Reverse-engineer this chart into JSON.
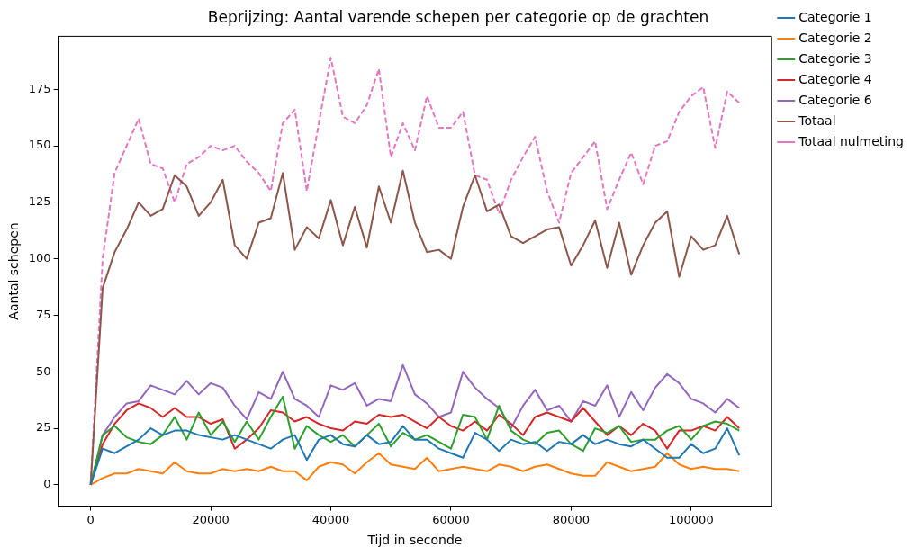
{
  "chart_data": {
    "type": "line",
    "title": "Beprijzing: Aantal varende schepen per categorie op de grachten",
    "xlabel": "Tijd in seconde",
    "ylabel": "Aantal schepen",
    "x": [
      0,
      2000,
      4000,
      6000,
      8000,
      10000,
      12000,
      14000,
      16000,
      18000,
      20000,
      22000,
      24000,
      26000,
      28000,
      30000,
      32000,
      34000,
      36000,
      38000,
      40000,
      42000,
      44000,
      46000,
      48000,
      50000,
      52000,
      54000,
      56000,
      58000,
      60000,
      62000,
      64000,
      66000,
      68000,
      70000,
      72000,
      74000,
      76000,
      78000,
      80000,
      82000,
      84000,
      86000,
      88000,
      90000,
      92000,
      94000,
      96000,
      98000,
      100000,
      102000,
      104000,
      106000,
      108000
    ],
    "series": [
      {
        "name": "Categorie 1",
        "color": "#1f77b4",
        "values": [
          0,
          16,
          14,
          17,
          20,
          25,
          22,
          24,
          24,
          22,
          21,
          20,
          22,
          20,
          18,
          16,
          20,
          22,
          11,
          20,
          22,
          18,
          17,
          22,
          18,
          19,
          26,
          20,
          20,
          16,
          14,
          12,
          23,
          20,
          15,
          20,
          18,
          19,
          15,
          19,
          18,
          22,
          18,
          20,
          18,
          17,
          20,
          16,
          12,
          12,
          18,
          14,
          16,
          25,
          13
        ]
      },
      {
        "name": "Categorie 2",
        "color": "#ff7f0e",
        "values": [
          0,
          3,
          5,
          5,
          7,
          6,
          5,
          10,
          6,
          5,
          5,
          7,
          6,
          7,
          6,
          8,
          6,
          6,
          2,
          8,
          10,
          9,
          5,
          10,
          14,
          9,
          8,
          7,
          12,
          6,
          7,
          8,
          7,
          6,
          9,
          8,
          6,
          8,
          9,
          7,
          5,
          4,
          4,
          10,
          8,
          6,
          7,
          8,
          14,
          9,
          7,
          8,
          7,
          7,
          6
        ]
      },
      {
        "name": "Categorie 3",
        "color": "#2ca02c",
        "values": [
          0,
          22,
          26,
          21,
          19,
          18,
          22,
          30,
          20,
          32,
          22,
          28,
          19,
          28,
          20,
          30,
          39,
          16,
          26,
          22,
          19,
          22,
          17,
          22,
          27,
          17,
          23,
          20,
          22,
          19,
          16,
          31,
          30,
          20,
          35,
          24,
          20,
          18,
          23,
          24,
          18,
          15,
          25,
          23,
          26,
          19,
          20,
          20,
          24,
          26,
          20,
          26,
          28,
          27,
          24
        ]
      },
      {
        "name": "Categorie 4",
        "color": "#d62728",
        "values": [
          0,
          18,
          27,
          33,
          36,
          34,
          30,
          34,
          30,
          30,
          27,
          29,
          16,
          20,
          25,
          33,
          32,
          28,
          30,
          27,
          25,
          24,
          28,
          27,
          31,
          30,
          31,
          28,
          25,
          30,
          26,
          24,
          28,
          24,
          31,
          27,
          22,
          30,
          32,
          30,
          28,
          34,
          28,
          22,
          26,
          22,
          27,
          24,
          16,
          24,
          24,
          26,
          24,
          30,
          25
        ]
      },
      {
        "name": "Categorie 6",
        "color": "#9467bd",
        "values": [
          0,
          22,
          30,
          36,
          37,
          44,
          42,
          40,
          46,
          40,
          45,
          43,
          35,
          29,
          41,
          38,
          50,
          38,
          35,
          30,
          44,
          42,
          45,
          35,
          38,
          37,
          53,
          40,
          36,
          30,
          32,
          50,
          43,
          38,
          34,
          25,
          35,
          42,
          33,
          35,
          28,
          37,
          35,
          44,
          30,
          41,
          33,
          43,
          49,
          45,
          38,
          36,
          32,
          38,
          34
        ]
      },
      {
        "name": "Totaal",
        "color": "#8c564b",
        "values": [
          0,
          87,
          103,
          113,
          125,
          119,
          122,
          137,
          132,
          119,
          125,
          135,
          106,
          100,
          116,
          118,
          138,
          104,
          114,
          109,
          126,
          106,
          123,
          105,
          132,
          116,
          139,
          116,
          103,
          104,
          100,
          123,
          137,
          121,
          124,
          110,
          107,
          110,
          113,
          114,
          97,
          106,
          117,
          96,
          116,
          93,
          106,
          116,
          121,
          92,
          110,
          104,
          106,
          119,
          102
        ]
      },
      {
        "name": "Totaal nulmeting",
        "color": "#e377c2",
        "line_style": "dashed",
        "values": [
          0,
          100,
          138,
          150,
          162,
          142,
          140,
          125,
          142,
          145,
          150,
          148,
          150,
          143,
          138,
          130,
          160,
          166,
          130,
          160,
          189,
          163,
          160,
          168,
          184,
          145,
          160,
          148,
          172,
          158,
          158,
          165,
          137,
          135,
          120,
          135,
          145,
          154,
          130,
          116,
          138,
          145,
          152,
          122,
          135,
          147,
          133,
          150,
          152,
          165,
          172,
          176,
          149,
          174,
          169
        ]
      }
    ],
    "xlim": [
      -5400,
      113400
    ],
    "ylim": [
      -9.45,
      198.45
    ],
    "xticks": [
      0,
      20000,
      40000,
      60000,
      80000,
      100000
    ],
    "yticks": [
      0,
      25,
      50,
      75,
      100,
      125,
      150,
      175
    ],
    "legend": "top right",
    "line_style": "solid"
  }
}
